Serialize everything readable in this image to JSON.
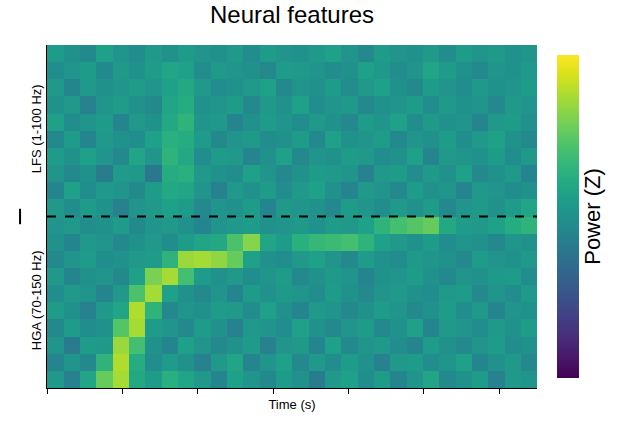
{
  "chart_data": {
    "type": "heatmap",
    "title": "Neural features",
    "x_label": "Time (s)",
    "colorbar_label": "Power (Z)",
    "x": [
      0.11,
      0.33,
      0.54,
      0.76,
      0.98,
      1.19,
      1.41,
      1.63,
      1.84,
      2.06,
      2.28,
      2.49,
      2.71,
      2.93,
      3.14,
      3.36,
      3.58,
      3.79,
      4.01,
      4.23,
      4.44,
      4.66,
      4.88,
      5.09,
      5.31,
      5.53,
      5.74,
      5.96,
      6.18,
      6.39
    ],
    "y": [
      0,
      1,
      2,
      3,
      4,
      5,
      6,
      7,
      8,
      9,
      10,
      11,
      12,
      13,
      14,
      15,
      16,
      17,
      18,
      19
    ],
    "z": [
      [
        0.2,
        -0.4,
        0.5,
        1.6,
        2.2,
        0.6,
        0.3,
        0.8,
        0.5,
        0.2,
        -0.3,
        0.4,
        0.1,
        -0.2,
        0.3,
        0.0,
        -0.5,
        0.2,
        0.4,
        -0.1,
        0.3,
        -0.3,
        0.1,
        0.5,
        -0.2,
        0.0,
        0.3,
        -0.4,
        0.2,
        0.1
      ],
      [
        -0.3,
        0.1,
        -0.2,
        0.9,
        2.3,
        0.7,
        -0.1,
        0.3,
        0.0,
        -0.4,
        0.2,
        0.5,
        -0.3,
        0.1,
        0.4,
        -0.2,
        0.2,
        -0.1,
        0.3,
        0.0,
        -0.4,
        0.2,
        0.3,
        -0.1,
        0.1,
        0.4,
        -0.3,
        0.0,
        0.2,
        -0.2
      ],
      [
        0.1,
        -0.5,
        0.3,
        0.2,
        2.1,
        1.2,
        0.0,
        -0.3,
        0.4,
        0.1,
        -0.2,
        0.0,
        0.3,
        -0.4,
        0.1,
        0.2,
        -0.3,
        0.4,
        -0.2,
        0.1,
        0.2,
        -0.1,
        -0.3,
        0.3,
        0.0,
        -0.2,
        0.1,
        0.3,
        -0.1,
        0.0
      ],
      [
        -0.2,
        0.3,
        -0.1,
        0.0,
        1.4,
        2.2,
        0.3,
        0.1,
        -0.2,
        0.3,
        0.0,
        -0.4,
        0.2,
        0.1,
        -0.1,
        0.4,
        0.0,
        -0.2,
        0.1,
        0.3,
        -0.2,
        0.0,
        0.4,
        -0.3,
        0.2,
        0.1,
        -0.1,
        0.2,
        0.0,
        0.3
      ],
      [
        0.3,
        0.0,
        -0.4,
        0.2,
        0.5,
        2.3,
        0.9,
        -0.2,
        0.1,
        0.0,
        0.3,
        0.2,
        -0.1,
        0.4,
        0.0,
        -0.3,
        0.2,
        0.1,
        -0.2,
        0.0,
        0.3,
        0.1,
        -0.2,
        0.0,
        0.3,
        -0.1,
        0.2,
        -0.3,
        0.1,
        0.0
      ],
      [
        -0.1,
        0.2,
        0.1,
        -0.3,
        0.2,
        1.3,
        2.2,
        0.4,
        0.0,
        -0.2,
        0.1,
        -0.3,
        0.3,
        0.0,
        0.2,
        0.1,
        -0.1,
        0.3,
        0.0,
        -0.2,
        0.1,
        0.2,
        0.0,
        -0.1,
        0.2,
        0.3,
        -0.2,
        0.1,
        -0.1,
        0.2
      ],
      [
        0.2,
        -0.3,
        0.0,
        0.1,
        -0.2,
        0.4,
        1.8,
        2.2,
        1.2,
        0.3,
        0.0,
        0.2,
        -0.1,
        0.1,
        0.3,
        -0.2,
        0.0,
        0.2,
        0.1,
        -0.3,
        0.0,
        0.1,
        0.3,
        0.0,
        -0.2,
        0.1,
        0.0,
        0.2,
        0.3,
        -0.1
      ],
      [
        -0.2,
        0.1,
        0.3,
        -0.1,
        0.0,
        0.2,
        0.3,
        0.9,
        2.1,
        2.2,
        2.0,
        1.6,
        0.4,
        0.0,
        -0.1,
        0.2,
        0.4,
        0.1,
        -0.2,
        0.3,
        0.0,
        -0.1,
        0.2,
        0.1,
        0.0,
        -0.2,
        0.3,
        0.1,
        0.0,
        0.2
      ],
      [
        0.0,
        -0.3,
        0.2,
        0.1,
        -0.2,
        0.0,
        0.2,
        -0.1,
        0.3,
        0.5,
        0.6,
        1.3,
        1.9,
        0.5,
        0.3,
        0.8,
        1.0,
        1.1,
        1.2,
        0.9,
        0.4,
        0.2,
        0.0,
        0.3,
        -0.1,
        0.1,
        0.0,
        -0.2,
        0.1,
        0.0
      ],
      [
        0.1,
        0.2,
        -0.1,
        0.0,
        0.3,
        -0.2,
        0.1,
        0.2,
        0.0,
        -0.3,
        0.1,
        0.2,
        0.3,
        0.0,
        0.1,
        0.2,
        0.0,
        0.3,
        0.2,
        0.4,
        0.9,
        1.2,
        1.4,
        1.6,
        0.6,
        0.3,
        0.2,
        0.4,
        0.7,
        0.9
      ],
      [
        0.2,
        -0.1,
        0.3,
        0.0,
        -0.4,
        0.1,
        0.2,
        0.4,
        0.3,
        -0.2,
        0.1,
        0.0,
        0.3,
        -0.3,
        0.2,
        0.1,
        0.0,
        -0.2,
        0.3,
        0.1,
        -0.1,
        0.2,
        0.0,
        0.3,
        -0.2,
        0.1,
        0.2,
        0.0,
        0.3,
        0.5
      ],
      [
        -0.3,
        0.4,
        -0.1,
        0.2,
        0.1,
        -0.2,
        0.3,
        0.6,
        0.5,
        0.1,
        -0.4,
        0.2,
        0.0,
        0.3,
        -0.1,
        0.2,
        0.4,
        0.0,
        -0.3,
        0.2,
        0.1,
        -0.2,
        0.3,
        0.0,
        0.1,
        -0.3,
        0.2,
        0.1,
        -0.1,
        0.0
      ],
      [
        0.1,
        -0.2,
        0.0,
        -0.5,
        0.3,
        0.2,
        -0.6,
        0.7,
        0.8,
        0.2,
        0.0,
        -0.1,
        0.4,
        0.1,
        -0.2,
        0.0,
        0.3,
        0.2,
        0.1,
        -0.4,
        0.2,
        0.3,
        -0.1,
        0.2,
        0.0,
        0.4,
        -0.2,
        0.0,
        0.2,
        -0.3
      ],
      [
        0.3,
        0.0,
        0.4,
        0.1,
        -0.2,
        0.5,
        0.1,
        0.9,
        0.6,
        -0.1,
        0.3,
        0.2,
        -0.3,
        0.0,
        0.4,
        -0.2,
        0.1,
        0.0,
        0.3,
        0.2,
        -0.1,
        0.0,
        0.4,
        -0.3,
        0.2,
        0.1,
        0.0,
        0.3,
        -0.1,
        0.2
      ],
      [
        -0.2,
        0.3,
        -0.3,
        0.2,
        0.0,
        -0.1,
        0.4,
        0.8,
        0.7,
        0.3,
        -0.2,
        0.1,
        0.2,
        -0.1,
        0.0,
        0.3,
        -0.2,
        0.4,
        0.0,
        0.1,
        0.3,
        -0.2,
        0.1,
        0.0,
        0.3,
        -0.1,
        0.2,
        0.4,
        0.0,
        -0.2
      ],
      [
        0.4,
        -0.1,
        0.1,
        0.3,
        -0.3,
        0.2,
        0.0,
        0.6,
        0.9,
        0.1,
        0.2,
        -0.3,
        0.0,
        0.3,
        0.1,
        -0.1,
        0.2,
        0.0,
        -0.2,
        0.3,
        0.1,
        0.4,
        -0.1,
        0.2,
        0.0,
        0.1,
        -0.3,
        0.2,
        0.3,
        0.0
      ],
      [
        0.0,
        0.2,
        -0.4,
        0.1,
        0.3,
        0.0,
        -0.2,
        0.5,
        0.7,
        0.0,
        0.1,
        0.3,
        -0.2,
        0.2,
        0.0,
        0.4,
        -0.1,
        0.1,
        0.2,
        -0.2,
        0.0,
        0.1,
        0.3,
        -0.1,
        0.2,
        0.0,
        0.1,
        -0.2,
        0.2,
        0.1
      ],
      [
        0.2,
        -0.3,
        0.2,
        0.0,
        0.1,
        0.3,
        0.1,
        0.4,
        0.6,
        0.2,
        -0.1,
        0.0,
        0.2,
        0.4,
        -0.2,
        0.1,
        0.0,
        0.3,
        -0.1,
        0.2,
        0.4,
        0.0,
        -0.2,
        0.3,
        0.1,
        -0.1,
        0.2,
        0.0,
        0.1,
        0.3
      ],
      [
        -0.1,
        0.1,
        0.3,
        -0.2,
        0.2,
        0.0,
        0.3,
        0.5,
        0.4,
        -0.1,
        0.2,
        0.1,
        0.0,
        -0.2,
        0.3,
        0.2,
        0.1,
        -0.1,
        0.0,
        0.4,
        0.2,
        -0.1,
        0.1,
        0.5,
        0.3,
        0.0,
        -0.2,
        0.1,
        0.0,
        0.2
      ],
      [
        0.3,
        0.0,
        -0.2,
        0.4,
        0.1,
        -0.1,
        0.2,
        0.0,
        0.3,
        0.1,
        0.0,
        0.2,
        -0.1,
        0.3,
        0.1,
        0.0,
        0.2,
        0.4,
        0.1,
        -0.2,
        0.3,
        0.1,
        0.0,
        0.2,
        -0.1,
        0.3,
        0.1,
        0.2,
        0.0,
        0.1
      ]
    ],
    "xlim": [
      0,
      6.5
    ],
    "xticks": [
      0,
      1,
      2,
      3,
      4,
      5,
      6
    ],
    "ylim": [
      -0.5,
      19.5
    ],
    "yticks": [
      {
        "value": 4.5,
        "label": "HGA (70-150 Hz)"
      },
      {
        "value": 14.5,
        "label": "LFS (1-100 Hz)"
      }
    ],
    "divider": 9.5,
    "zlim": [
      -3,
      3
    ],
    "color": "Viridis",
    "tick_labels": "y"
  }
}
